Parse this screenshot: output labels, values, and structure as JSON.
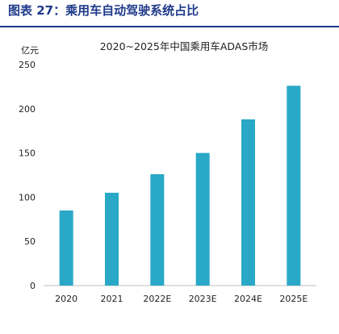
{
  "figure": {
    "caption": "图表 27：乘用车自动驾驶系统占比"
  },
  "colors": {
    "caption": "#1f3a8a",
    "bar": "#29a8c8",
    "text": "#222222",
    "axis": "#bfbfbf"
  },
  "chart_data": {
    "type": "bar",
    "title": "2020~2025年中国乘用车ADAS市场",
    "unit_label": "亿元",
    "categories": [
      "2020",
      "2021",
      "2022E",
      "2023E",
      "2024E",
      "2025E"
    ],
    "values": [
      85,
      105,
      126,
      150,
      188,
      226
    ],
    "ylim": [
      0,
      250
    ],
    "yticks": [
      0,
      50,
      100,
      150,
      200,
      250
    ],
    "grid": false,
    "legend": "none"
  }
}
